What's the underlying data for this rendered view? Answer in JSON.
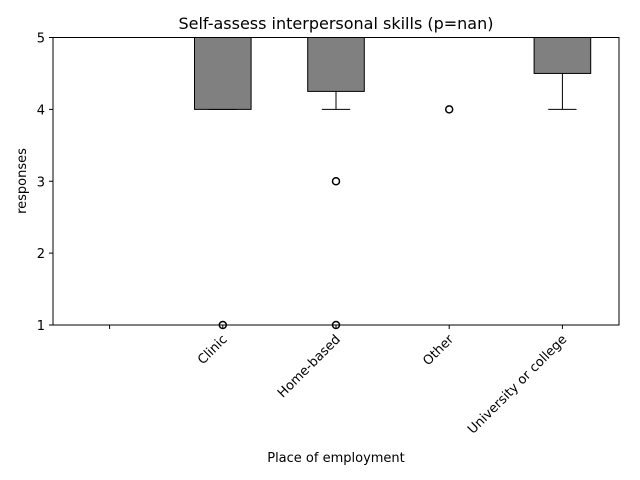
{
  "chart_data": {
    "type": "box",
    "title": "Self-assess interpersonal skills (p=nan)",
    "xlabel": "Place of employment",
    "ylabel": "responses",
    "ylim": [
      1,
      5
    ],
    "yticks": [
      1,
      2,
      3,
      4,
      5
    ],
    "categories": [
      "",
      "Clinic",
      "Home-based",
      "Other",
      "University or college"
    ],
    "boxes": [
      null,
      {
        "q1": 4,
        "median": 5,
        "q3": 5,
        "whisker_low": 4,
        "whisker_high": 5,
        "outliers": [
          1
        ]
      },
      {
        "q1": 4.25,
        "median": 5,
        "q3": 5,
        "whisker_low": 4,
        "whisker_high": 5,
        "outliers": [
          3,
          1
        ]
      },
      {
        "q1": 5,
        "median": 5,
        "q3": 5,
        "whisker_low": 5,
        "whisker_high": 5,
        "outliers": [
          4
        ]
      },
      {
        "q1": 4.5,
        "median": 5,
        "q3": 5,
        "whisker_low": 4,
        "whisker_high": 5,
        "outliers": []
      }
    ],
    "box_color": "#808080",
    "edge_color": "#000000",
    "grid": false,
    "legend": "none"
  }
}
